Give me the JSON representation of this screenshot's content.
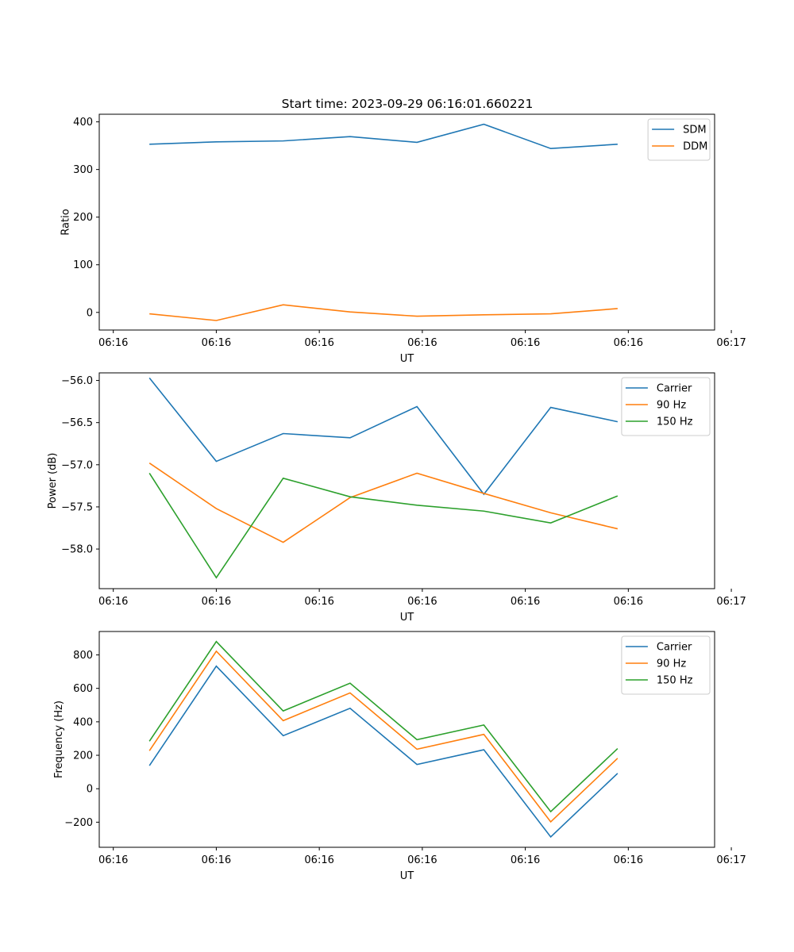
{
  "figure_title": "Start time: 2023-09-29 06:16:01.660221",
  "colors": {
    "c0": "#1f77b4",
    "c1": "#ff7f0e",
    "c2": "#2ca02c"
  },
  "chart_data": [
    {
      "type": "line",
      "title": "Start time: 2023-09-29 06:16:01.660221",
      "xlabel": "UT",
      "ylabel": "Ratio",
      "x": [
        1,
        2,
        3,
        4,
        5,
        6,
        7,
        8
      ],
      "xlim": [
        0.25,
        9.45
      ],
      "xticks": [
        0.46,
        2.0,
        3.54,
        5.08,
        6.62,
        8.16,
        9.7
      ],
      "xtick_labels": [
        "06:16",
        "06:16",
        "06:16",
        "06:16",
        "06:16",
        "06:16",
        "06:17"
      ],
      "ylim": [
        -37,
        416
      ],
      "yticks": [
        0,
        100,
        200,
        300,
        400
      ],
      "ytick_labels": [
        "0",
        "100",
        "200",
        "300",
        "400"
      ],
      "legend_position": "top-right",
      "grid": false,
      "series": [
        {
          "name": "SDM",
          "color": "#1f77b4",
          "values": [
            353,
            358,
            360,
            369,
            357,
            395,
            344,
            353
          ]
        },
        {
          "name": "DDM",
          "color": "#ff7f0e",
          "values": [
            -3,
            -17,
            16,
            1,
            -8,
            -5,
            -3,
            8
          ]
        }
      ]
    },
    {
      "type": "line",
      "title": "",
      "xlabel": "UT",
      "ylabel": "Power (dB)",
      "x": [
        1,
        2,
        3,
        4,
        5,
        6,
        7,
        8
      ],
      "xlim": [
        0.25,
        9.45
      ],
      "xticks": [
        0.46,
        2.0,
        3.54,
        5.08,
        6.62,
        8.16,
        9.7
      ],
      "xtick_labels": [
        "06:16",
        "06:16",
        "06:16",
        "06:16",
        "06:16",
        "06:16",
        "06:17"
      ],
      "ylim": [
        -58.47,
        -55.91
      ],
      "yticks": [
        -56.0,
        -56.5,
        -57.0,
        -57.5,
        -58.0
      ],
      "ytick_labels": [
        "−56.0",
        "−56.5",
        "−57.0",
        "−57.5",
        "−58.0"
      ],
      "legend_position": "top-right",
      "grid": false,
      "series": [
        {
          "name": "Carrier",
          "color": "#1f77b4",
          "values": [
            -55.97,
            -56.96,
            -56.63,
            -56.68,
            -56.31,
            -57.35,
            -56.32,
            -56.49
          ]
        },
        {
          "name": "90 Hz",
          "color": "#ff7f0e",
          "values": [
            -56.98,
            -57.52,
            -57.92,
            -57.39,
            -57.1,
            -57.34,
            -57.57,
            -57.76
          ]
        },
        {
          "name": "150 Hz",
          "color": "#2ca02c",
          "values": [
            -57.1,
            -58.34,
            -57.16,
            -57.38,
            -57.48,
            -57.55,
            -57.69,
            -57.37
          ]
        }
      ]
    },
    {
      "type": "line",
      "title": "",
      "xlabel": "UT",
      "ylabel": "Frequency (Hz)",
      "x": [
        1,
        2,
        3,
        4,
        5,
        6,
        7,
        8
      ],
      "xlim": [
        0.25,
        9.45
      ],
      "xticks": [
        0.46,
        2.0,
        3.54,
        5.08,
        6.62,
        8.16,
        9.7
      ],
      "xtick_labels": [
        "06:16",
        "06:16",
        "06:16",
        "06:16",
        "06:16",
        "06:16",
        "06:17"
      ],
      "ylim": [
        -350,
        940
      ],
      "yticks": [
        -200,
        0,
        200,
        400,
        600,
        800
      ],
      "ytick_labels": [
        "−200",
        "0",
        "200",
        "400",
        "600",
        "800"
      ],
      "legend_position": "top-right",
      "grid": false,
      "series": [
        {
          "name": "Carrier",
          "color": "#1f77b4",
          "values": [
            138,
            733,
            317,
            481,
            145,
            233,
            -288,
            92
          ]
        },
        {
          "name": "90 Hz",
          "color": "#ff7f0e",
          "values": [
            227,
            822,
            407,
            573,
            236,
            325,
            -198,
            182
          ]
        },
        {
          "name": "150 Hz",
          "color": "#2ca02c",
          "values": [
            284,
            880,
            465,
            631,
            293,
            381,
            -137,
            240
          ]
        }
      ]
    }
  ]
}
